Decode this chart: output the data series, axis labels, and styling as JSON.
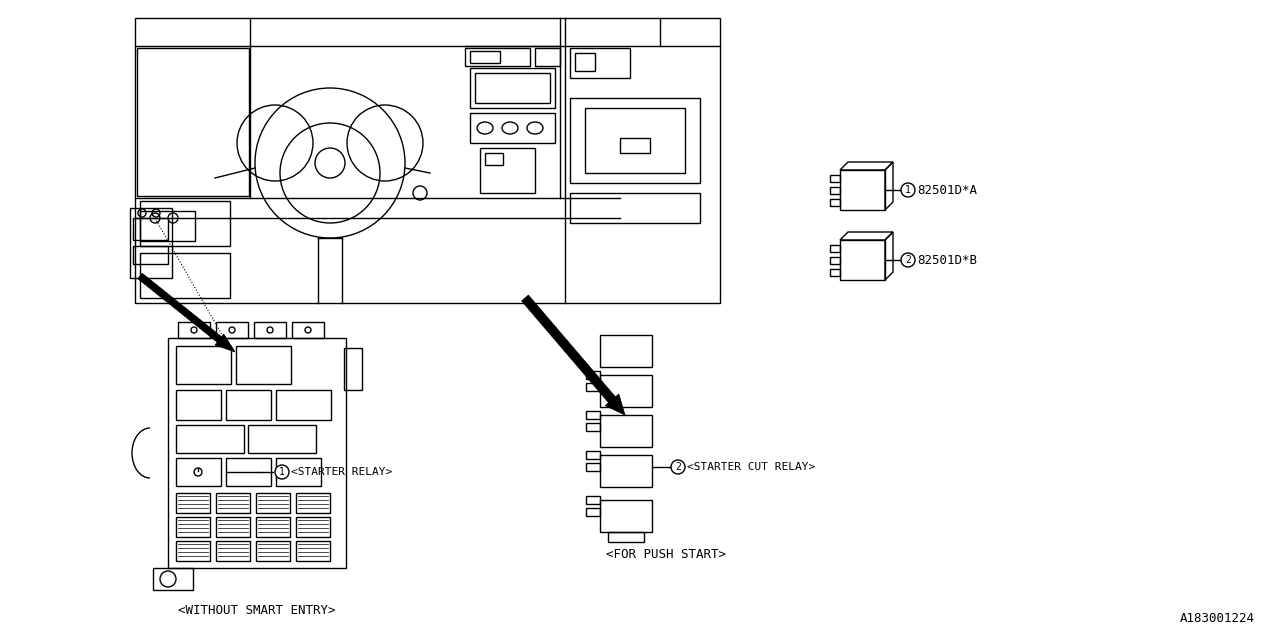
{
  "bg_color": "#ffffff",
  "line_color": "#000000",
  "watermark": "A183001224",
  "label_starter_relay": "<STARTER RELAY>",
  "label_starter_cut": "<STARTER CUT RELAY>",
  "label_without": "<WITHOUT SMART ENTRY>",
  "label_push": "<FOR PUSH START>",
  "part_a": "82501D*A",
  "part_b": "82501D*B"
}
